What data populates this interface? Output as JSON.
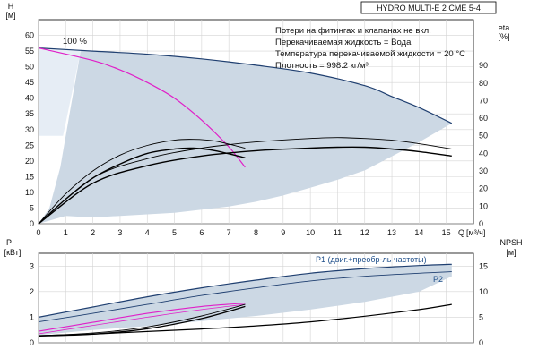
{
  "chart_data": [
    {
      "type": "line",
      "title": "HYDRO MULTI-E 2 CME 5-4",
      "notes": [
        "Потери на фитингах и клапанах не вкл.",
        "Перекачиваемая жидкость = Вода",
        "Температура перекачиваемой жидкости = 20 °C",
        "Плотность = 998.2 кг/м³"
      ],
      "ylabel_left": "H",
      "ylabel_left_unit": "[м]",
      "ylabel_right": "eta",
      "ylabel_right_unit": "[%]",
      "xlabel": "Q",
      "xlabel_unit": "[м³/ч]",
      "xlim": [
        0,
        16
      ],
      "xticks": [
        0,
        1,
        2,
        3,
        4,
        5,
        6,
        7,
        8,
        9,
        10,
        11,
        12,
        13,
        14,
        15
      ],
      "ylim_left": [
        0,
        65
      ],
      "yticks_left": [
        0,
        5,
        10,
        15,
        20,
        25,
        30,
        35,
        40,
        45,
        50,
        55,
        60
      ],
      "ylim_right": [
        0,
        116
      ],
      "yticks_right": [
        0,
        10,
        20,
        30,
        40,
        50,
        60,
        70,
        80,
        90
      ],
      "speed_label": "100 %",
      "grid": true,
      "colors": {
        "envelope": "#ccd8e4",
        "envelope_edge": "#1f3f70",
        "duty": "#e020c8",
        "curve": "#000000",
        "grid": "#d4d4d4"
      },
      "series": [
        {
          "role": "max-speed-head",
          "x": [
            0,
            2,
            4,
            6,
            8,
            10,
            12,
            13,
            14,
            15.2
          ],
          "values": [
            56,
            55,
            54,
            52.5,
            50.5,
            48,
            44,
            40.5,
            37,
            32
          ]
        },
        {
          "role": "envelope-lower",
          "x": [
            0,
            1,
            2,
            3,
            4,
            5,
            6,
            7,
            8,
            9,
            10,
            11,
            12,
            13,
            14,
            15.2
          ],
          "values": [
            0,
            2.5,
            2,
            2.5,
            3,
            3.5,
            4.5,
            5.5,
            7,
            9,
            11.5,
            14,
            17,
            21.5,
            26,
            32
          ]
        },
        {
          "role": "envelope-left",
          "x": [
            0,
            0.4,
            0.8,
            1.2,
            1.55
          ],
          "values": [
            0,
            5,
            18,
            38,
            55
          ]
        },
        {
          "role": "duty-head",
          "x": [
            0,
            2,
            3,
            4,
            5,
            6,
            7,
            7.6
          ],
          "values": [
            56,
            52,
            49,
            45,
            40,
            33,
            24.5,
            18
          ]
        },
        {
          "role": "eta-large-upper",
          "x": [
            0,
            2,
            4,
            6,
            8,
            10,
            11,
            12,
            13,
            14,
            15.2
          ],
          "values": [
            0,
            26,
            37,
            43,
            46.5,
            48.5,
            49,
            48.5,
            47.5,
            45.5,
            42.5
          ]
        },
        {
          "role": "eta-large-lower",
          "x": [
            0,
            2,
            4,
            6,
            8,
            10,
            11,
            12,
            13,
            14,
            15.2
          ],
          "values": [
            0,
            23,
            33,
            38.5,
            41.5,
            43,
            43.5,
            43.5,
            42.5,
            41,
            38.5
          ]
        },
        {
          "role": "eta-small-upper",
          "x": [
            0,
            1,
            2,
            3,
            4,
            5,
            5.7,
            6.5,
            7.6
          ],
          "values": [
            0,
            17,
            30,
            39,
            44.5,
            47.5,
            48,
            47,
            43
          ]
        },
        {
          "role": "eta-small-lower",
          "x": [
            0,
            1,
            2,
            3,
            4,
            5,
            5.7,
            6.5,
            7.6
          ],
          "values": [
            0,
            14,
            26,
            34,
            40,
            42.5,
            43,
            41.5,
            37.5
          ]
        }
      ]
    },
    {
      "type": "line",
      "ylabel_left": "P",
      "ylabel_left_unit": "[кВт]",
      "ylabel_right": "NPSH",
      "ylabel_right_unit": "[м]",
      "xlim": [
        0,
        16
      ],
      "ylim_left": [
        0,
        3.5
      ],
      "yticks_left": [
        0,
        1,
        2,
        3
      ],
      "ylim_right": [
        0,
        17.5
      ],
      "yticks_right": [
        0,
        5,
        10,
        15
      ],
      "grid": true,
      "legend_p1": "P1 (двиг.+преобр-ль частоты)",
      "legend_p2": "P2",
      "series": [
        {
          "role": "p1-max",
          "x": [
            0,
            2,
            4,
            6,
            8,
            10,
            12,
            14,
            15.2
          ],
          "values": [
            1.0,
            1.4,
            1.8,
            2.15,
            2.45,
            2.72,
            2.9,
            3.02,
            3.07
          ]
        },
        {
          "role": "p2-max",
          "x": [
            0,
            2,
            4,
            6,
            8,
            10,
            12,
            14,
            15.2
          ],
          "values": [
            0.82,
            1.15,
            1.5,
            1.85,
            2.15,
            2.42,
            2.6,
            2.72,
            2.78
          ]
        },
        {
          "role": "envelope-lower",
          "x": [
            0,
            2,
            4,
            6,
            8,
            10,
            12,
            14,
            15.2
          ],
          "values": [
            0.3,
            0.5,
            0.65,
            0.85,
            1.05,
            1.3,
            1.6,
            2.0,
            2.6
          ]
        },
        {
          "role": "duty-p1",
          "x": [
            0,
            2,
            4,
            6,
            7.6
          ],
          "values": [
            0.45,
            0.8,
            1.15,
            1.42,
            1.55
          ]
        },
        {
          "role": "duty-p2",
          "x": [
            0,
            2,
            4,
            6,
            7.6
          ],
          "values": [
            0.35,
            0.68,
            1.0,
            1.3,
            1.5
          ]
        },
        {
          "role": "eta-small-p-upper",
          "x": [
            0,
            2,
            4,
            6,
            7.6
          ],
          "values": [
            0.28,
            0.38,
            0.62,
            1.05,
            1.5
          ]
        },
        {
          "role": "eta-small-p-lower",
          "x": [
            0,
            2,
            4,
            6,
            7.6
          ],
          "values": [
            0.27,
            0.34,
            0.55,
            0.95,
            1.42
          ]
        },
        {
          "role": "npsh",
          "x": [
            0,
            2,
            4,
            6,
            8,
            10,
            12,
            14,
            15.2
          ],
          "values": [
            1.4,
            1.7,
            2.2,
            2.7,
            3.3,
            4.1,
            5.2,
            6.5,
            7.5
          ]
        }
      ]
    }
  ]
}
